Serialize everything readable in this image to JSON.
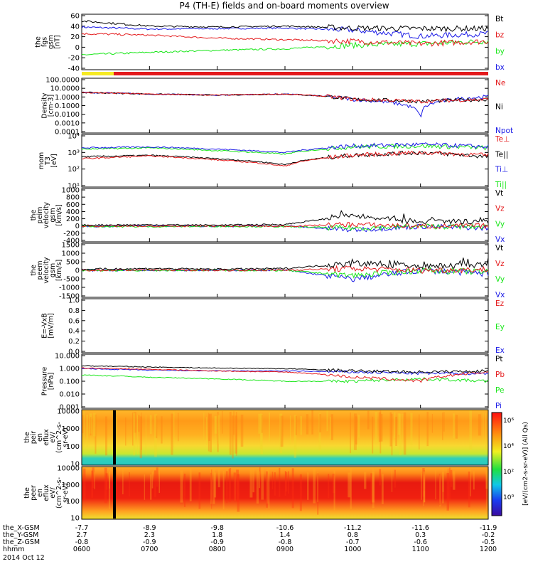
{
  "title": "P4 (TH-E) fields and on-board moments overview",
  "colors": {
    "black": "#000000",
    "red": "#e41a1c",
    "green": "#19e619",
    "blue": "#1a1ae6",
    "yellow": "#f6ea24",
    "orange": "#ff9900"
  },
  "panels": [
    {
      "id": "bfield",
      "ylabel": [
        "the",
        "fgs",
        "gsm",
        "[nT]"
      ],
      "yticks": [
        "60",
        "40",
        "20",
        "0",
        "-20",
        "-40"
      ],
      "legend": [
        {
          "label": "Bt",
          "color": "#000000"
        },
        {
          "label": "bz",
          "color": "#e41a1c"
        },
        {
          "label": "by",
          "color": "#19e619"
        },
        {
          "label": "bx",
          "color": "#1a1ae6"
        }
      ]
    },
    {
      "id": "density",
      "ylabel": [
        "Density",
        "[cm-3]"
      ],
      "yticks": [
        "100.0000",
        "10.0000",
        "1.0000",
        "0.1000",
        "0.0100",
        "0.0010",
        "0.0001"
      ],
      "legend": [
        {
          "label": "Ne",
          "color": "#e41a1c"
        },
        {
          "label": "Ni",
          "color": "#000000"
        },
        {
          "label": "Npot",
          "color": "#1a1ae6"
        }
      ]
    },
    {
      "id": "temperature",
      "ylabel": [
        "mom",
        "T3",
        "[eV]"
      ],
      "yticks": [
        "10⁴",
        "10³",
        "10²",
        "10¹"
      ],
      "legend": [
        {
          "label": "Te⊥",
          "color": "#e41a1c"
        },
        {
          "label": "Te||",
          "color": "#000000"
        },
        {
          "label": "Ti⊥",
          "color": "#1a1ae6"
        },
        {
          "label": "Ti||",
          "color": "#19e619"
        }
      ]
    },
    {
      "id": "vi",
      "ylabel": [
        "the",
        "peim",
        "velocity",
        "gsm",
        "[km/s]"
      ],
      "yticks": [
        "1000",
        "800",
        "600",
        "400",
        "200",
        "0",
        "-200",
        "-400"
      ],
      "legend": [
        {
          "label": "Vt",
          "color": "#000000"
        },
        {
          "label": "Vz",
          "color": "#e41a1c"
        },
        {
          "label": "Vy",
          "color": "#19e619"
        },
        {
          "label": "Vx",
          "color": "#1a1ae6"
        }
      ]
    },
    {
      "id": "ve",
      "ylabel": [
        "the",
        "peem",
        "velocity",
        "gsm",
        "[km/s]"
      ],
      "yticks": [
        "1500",
        "1000",
        "500",
        "0",
        "-500",
        "-1000",
        "-1500"
      ],
      "legend": [
        {
          "label": "Vt",
          "color": "#000000"
        },
        {
          "label": "Vz",
          "color": "#e41a1c"
        },
        {
          "label": "Vy",
          "color": "#19e619"
        },
        {
          "label": "Vx",
          "color": "#1a1ae6"
        }
      ]
    },
    {
      "id": "efield",
      "ylabel": [
        "E=-VxB",
        "[mV/m]"
      ],
      "yticks": [
        "1.0",
        "0.8",
        "0.6",
        "0.4",
        "0.2",
        "0.0"
      ],
      "legend": [
        {
          "label": "Ez",
          "color": "#e41a1c"
        },
        {
          "label": "Ey",
          "color": "#19e619"
        },
        {
          "label": "Ex",
          "color": "#1a1ae6"
        }
      ]
    },
    {
      "id": "pressure",
      "ylabel": [
        "Pressure",
        "[nPa]"
      ],
      "yticks": [
        "10.000",
        "1.000",
        "0.100",
        "0.010",
        "0.001"
      ],
      "legend": [
        {
          "label": "Pt",
          "color": "#000000"
        },
        {
          "label": "Pb",
          "color": "#e41a1c"
        },
        {
          "label": "Pe",
          "color": "#19e619"
        },
        {
          "label": "Pi",
          "color": "#1a1ae6"
        }
      ]
    },
    {
      "id": "ion_spec",
      "ylabel": [
        "the",
        "peir",
        "en",
        "eflux",
        "eV/",
        "(cm^2-s-",
        "sr-eV)"
      ],
      "yticks": [
        "10000",
        "1000",
        "100",
        "10"
      ]
    },
    {
      "id": "elec_spec",
      "ylabel": [
        "the",
        "peer",
        "en",
        "eflux",
        "eV/",
        "(cm^2-s-",
        "sr-eV)"
      ],
      "yticks": [
        "10000",
        "1000",
        "100",
        "10"
      ]
    }
  ],
  "colorbar": {
    "label": "[eV/(cm2-s-sr-eV)] (All Qs)",
    "ticks": [
      "10⁶",
      "10⁴",
      "10²",
      "10⁰"
    ]
  },
  "xaxis": {
    "rows": [
      {
        "label": "the_X-GSM",
        "values": [
          "-7.7",
          "-8.9",
          "-9.8",
          "-10.6",
          "-11.2",
          "-11.6",
          "-11.9"
        ]
      },
      {
        "label": "the_Y-GSM",
        "values": [
          "2.7",
          "2.3",
          "1.8",
          "1.4",
          "0.8",
          "0.3",
          "-0.2"
        ]
      },
      {
        "label": "the_Z-GSM",
        "values": [
          "-0.8",
          "-0.9",
          "-0.9",
          "-0.8",
          "-0.7",
          "-0.6",
          "-0.5"
        ]
      },
      {
        "label": "hhmm",
        "values": [
          "0600",
          "0700",
          "0800",
          "0900",
          "1000",
          "1100",
          "1200"
        ]
      }
    ],
    "date": "2014 Oct 12"
  },
  "chart_data": {
    "type": "line",
    "title": "P4 (TH-E) fields and on-board moments overview",
    "x": [
      "0600",
      "0700",
      "0800",
      "0900",
      "1000",
      "1100",
      "1200"
    ],
    "xlabel": "hhmm",
    "date": "2014 Oct 12",
    "panels": [
      {
        "name": "the fgs gsm",
        "unit": "nT",
        "ylim": [
          -45,
          62
        ],
        "grid": false,
        "series": [
          {
            "name": "Bt",
            "values": [
              50,
              40,
              38,
              40,
              36,
              35,
              35
            ]
          },
          {
            "name": "bz",
            "values": [
              25,
              22,
              16,
              13,
              10,
              5,
              10
            ]
          },
          {
            "name": "by",
            "values": [
              -17,
              -12,
              -8,
              -5,
              2,
              5,
              10
            ]
          },
          {
            "name": "bx",
            "values": [
              38,
              34,
              35,
              36,
              32,
              20,
              25
            ]
          }
        ]
      },
      {
        "name": "Density",
        "unit": "cm-3",
        "scale": "log",
        "ylim": [
          0.0001,
          100
        ],
        "grid": false,
        "series": [
          {
            "name": "Ne",
            "values": [
              3,
              2,
              1.5,
              2,
              0.5,
              0.3,
              0.5
            ]
          },
          {
            "name": "Ni",
            "values": [
              3,
              2,
              1.5,
              2,
              0.5,
              0.3,
              0.5
            ]
          },
          {
            "name": "Npot",
            "values": [
              3,
              2,
              1.5,
              2,
              0.5,
              0.0001,
              1
            ]
          }
        ]
      },
      {
        "name": "mom T3",
        "unit": "eV",
        "scale": "log",
        "ylim": [
          10,
          20000
        ],
        "grid": false,
        "series": [
          {
            "name": "Te⊥",
            "values": [
              600,
              900,
              500,
              200,
              1000,
              1500,
              1000
            ]
          },
          {
            "name": "Te||",
            "values": [
              800,
              1000,
              600,
              250,
              1000,
              1500,
              800
            ]
          },
          {
            "name": "Ti⊥",
            "values": [
              3000,
              3500,
              2500,
              1500,
              4000,
              5000,
              3500
            ]
          },
          {
            "name": "Ti||",
            "values": [
              2500,
              3000,
              2000,
              1200,
              3500,
              4000,
              3000
            ]
          }
        ]
      },
      {
        "name": "the peim velocity gsm",
        "unit": "km/s",
        "ylim": [
          -400,
          1000
        ],
        "grid": false,
        "series": [
          {
            "name": "Vt",
            "values": [
              30,
              40,
              30,
              50,
              300,
              100,
              150
            ]
          },
          {
            "name": "Vz",
            "values": [
              10,
              0,
              10,
              0,
              50,
              0,
              10
            ]
          },
          {
            "name": "Vy",
            "values": [
              0,
              -10,
              0,
              -10,
              -50,
              0,
              -20
            ]
          },
          {
            "name": "Vx",
            "values": [
              0,
              10,
              0,
              10,
              -100,
              0,
              -50
            ]
          }
        ]
      },
      {
        "name": "the peem velocity gsm",
        "unit": "km/s",
        "ylim": [
          -1500,
          1500
        ],
        "grid": false,
        "series": [
          {
            "name": "Vt",
            "values": [
              50,
              100,
              60,
              100,
              400,
              200,
              300
            ]
          },
          {
            "name": "Vz",
            "values": [
              0,
              20,
              0,
              10,
              100,
              0,
              50
            ]
          },
          {
            "name": "Vy",
            "values": [
              0,
              -10,
              0,
              -10,
              -300,
              0,
              -100
            ]
          },
          {
            "name": "Vx",
            "values": [
              0,
              10,
              0,
              10,
              -500,
              0,
              -200
            ]
          }
        ]
      },
      {
        "name": "E=-VxB",
        "unit": "mV/m",
        "ylim": [
          0,
          1
        ],
        "grid": false,
        "series": [
          {
            "name": "Ez",
            "values": []
          },
          {
            "name": "Ey",
            "values": []
          },
          {
            "name": "Ex",
            "values": []
          }
        ]
      },
      {
        "name": "Pressure",
        "unit": "nPa",
        "scale": "log",
        "ylim": [
          0.001,
          10
        ],
        "grid": false,
        "series": [
          {
            "name": "Pt",
            "values": [
              1.5,
              1.2,
              1.0,
              0.9,
              0.6,
              0.5,
              0.6
            ]
          },
          {
            "name": "Pb",
            "values": [
              1.0,
              0.8,
              0.6,
              0.5,
              0.2,
              0.1,
              0.5
            ]
          },
          {
            "name": "Pe",
            "values": [
              0.3,
              0.2,
              0.15,
              0.1,
              0.1,
              0.15,
              0.1
            ]
          },
          {
            "name": "Pi",
            "values": [
              0.9,
              0.7,
              0.6,
              0.6,
              0.5,
              0.4,
              0.4
            ]
          }
        ]
      }
    ],
    "spectrograms": [
      {
        "name": "the peir en eflux",
        "unit": "eV/(cm^2-s-sr-eV)",
        "ylim": [
          8,
          30000
        ],
        "scale": "log"
      },
      {
        "name": "the peer en eflux",
        "unit": "eV/(cm^2-s-sr-eV)",
        "ylim": [
          8,
          30000
        ],
        "scale": "log"
      }
    ],
    "colorbar_range": [
      1,
      10000000
    ]
  }
}
